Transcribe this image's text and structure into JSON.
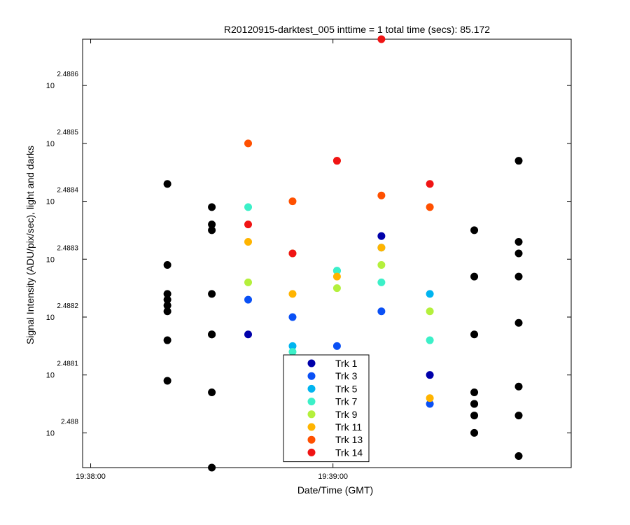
{
  "chart_data": {
    "type": "scatter",
    "title": "R20120915-darktest_005 inttime = 1 total time (secs): 85.172",
    "xlabel": "Date/Time (GMT)",
    "ylabel": "Signal Intensity (ADU/pix/sec), light and darks",
    "x_time_range": [
      "19:37:58",
      "19:39:59"
    ],
    "ylim_exponent": [
      2.48794,
      2.48868
    ],
    "x_ticks": [
      {
        "time": "19:38:00",
        "label": "19:38:00"
      },
      {
        "time": "19:39:00",
        "label": "19:39:00"
      }
    ],
    "y_ticks": [
      {
        "base": "10",
        "exponent": "2.488"
      },
      {
        "base": "10",
        "exponent": "2.4881"
      },
      {
        "base": "10",
        "exponent": "2.4882"
      },
      {
        "base": "10",
        "exponent": "2.4883"
      },
      {
        "base": "10",
        "exponent": "2.4884"
      },
      {
        "base": "10",
        "exponent": "2.4885"
      },
      {
        "base": "10",
        "exponent": "2.4886"
      }
    ],
    "grid": false,
    "legend_placement": "bottom-center",
    "series": [
      {
        "name": "Trk 1",
        "color": "#0000aa",
        "points": [
          [
            "19:38:39",
            2.48817
          ],
          [
            "19:39:12",
            2.48834
          ],
          [
            "19:39:24",
            2.4881
          ]
        ]
      },
      {
        "name": "Trk 3",
        "color": "#0a50f5",
        "points": [
          [
            "19:38:39",
            2.48823
          ],
          [
            "19:38:50",
            2.4882
          ],
          [
            "19:39:01",
            2.48815
          ],
          [
            "19:39:12",
            2.48821
          ],
          [
            "19:39:24",
            2.48805
          ]
        ]
      },
      {
        "name": "Trk 5",
        "color": "#00b4f0",
        "points": [
          [
            "19:38:50",
            2.48815
          ],
          [
            "19:39:01",
            2.48828
          ],
          [
            "19:39:12",
            2.48832
          ],
          [
            "19:39:24",
            2.48824
          ]
        ]
      },
      {
        "name": "Trk 7",
        "color": "#3cf0c8",
        "points": [
          [
            "19:38:39",
            2.48839
          ],
          [
            "19:38:50",
            2.48814
          ],
          [
            "19:39:01",
            2.48828
          ],
          [
            "19:39:12",
            2.48826
          ],
          [
            "19:39:24",
            2.48816
          ]
        ]
      },
      {
        "name": "Trk 9",
        "color": "#b4f03c",
        "points": [
          [
            "19:38:39",
            2.48826
          ],
          [
            "19:38:50",
            2.48831
          ],
          [
            "19:39:01",
            2.48825
          ],
          [
            "19:39:12",
            2.48829
          ],
          [
            "19:39:24",
            2.48821
          ]
        ]
      },
      {
        "name": "Trk 11",
        "color": "#ffb400",
        "points": [
          [
            "19:38:39",
            2.48833
          ],
          [
            "19:38:50",
            2.48824
          ],
          [
            "19:39:01",
            2.48827
          ],
          [
            "19:39:12",
            2.48832
          ],
          [
            "19:39:24",
            2.48806
          ]
        ]
      },
      {
        "name": "Trk 13",
        "color": "#ff5000",
        "points": [
          [
            "19:38:39",
            2.4885
          ],
          [
            "19:38:50",
            2.4884
          ],
          [
            "19:39:01",
            2.48847
          ],
          [
            "19:39:12",
            2.48841
          ],
          [
            "19:39:24",
            2.48839
          ]
        ]
      },
      {
        "name": "Trk 14",
        "color": "#f01414",
        "points": [
          [
            "19:38:39",
            2.48836
          ],
          [
            "19:38:50",
            2.48831
          ],
          [
            "19:39:01",
            2.48847
          ],
          [
            "19:39:12",
            2.48868
          ],
          [
            "19:39:24",
            2.48843
          ]
        ]
      },
      {
        "name": "",
        "color": "#000000",
        "points": [
          [
            "19:38:19",
            2.48843
          ],
          [
            "19:38:19",
            2.48829
          ],
          [
            "19:38:19",
            2.48824
          ],
          [
            "19:38:19",
            2.48823
          ],
          [
            "19:38:19",
            2.48822
          ],
          [
            "19:38:19",
            2.48821
          ],
          [
            "19:38:19",
            2.48816
          ],
          [
            "19:38:19",
            2.48809
          ],
          [
            "19:38:30",
            2.48839
          ],
          [
            "19:38:30",
            2.48836
          ],
          [
            "19:38:30",
            2.48835
          ],
          [
            "19:38:30",
            2.48824
          ],
          [
            "19:38:30",
            2.48817
          ],
          [
            "19:38:30",
            2.48817
          ],
          [
            "19:38:30",
            2.48807
          ],
          [
            "19:38:30",
            2.48794
          ],
          [
            "19:39:35",
            2.48835
          ],
          [
            "19:39:35",
            2.48827
          ],
          [
            "19:39:35",
            2.48817
          ],
          [
            "19:39:35",
            2.48807
          ],
          [
            "19:39:35",
            2.48805
          ],
          [
            "19:39:35",
            2.48805
          ],
          [
            "19:39:35",
            2.48803
          ],
          [
            "19:39:35",
            2.488
          ],
          [
            "19:39:46",
            2.48847
          ],
          [
            "19:39:46",
            2.48833
          ],
          [
            "19:39:46",
            2.48831
          ],
          [
            "19:39:46",
            2.48827
          ],
          [
            "19:39:46",
            2.48819
          ],
          [
            "19:39:46",
            2.48808
          ],
          [
            "19:39:46",
            2.48803
          ],
          [
            "19:39:46",
            2.48796
          ]
        ]
      }
    ]
  }
}
